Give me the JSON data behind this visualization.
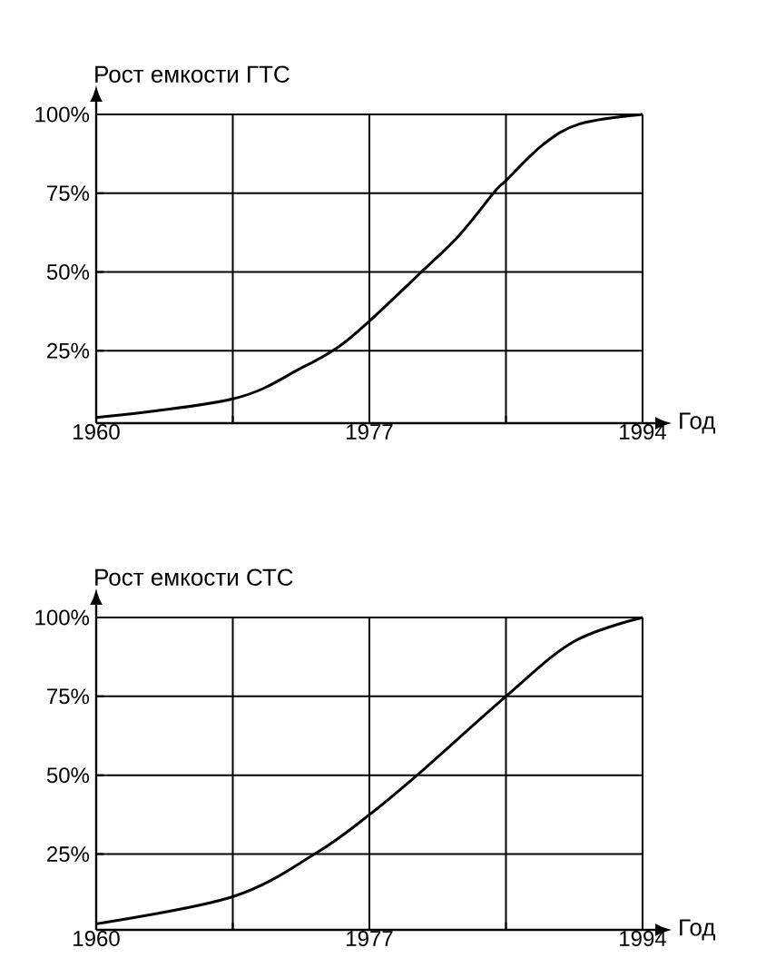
{
  "chart_data": [
    {
      "type": "line",
      "ylabel": "Рост емкости ГТС",
      "xlabel": "Год",
      "x": [
        1960,
        1968.5,
        1972.8,
        1975.1,
        1977,
        1980.3,
        1982.6,
        1984.8,
        1985.5,
        1987.8,
        1990.1,
        1994
      ],
      "series": [
        {
          "color": "#000000",
          "values": [
            3.8,
            9.7,
            19.6,
            26.3,
            34.4,
            50.3,
            61.7,
            75.5,
            79,
            90.4,
            97,
            100
          ]
        }
      ],
      "xlim": [
        1960,
        1994
      ],
      "ylim": [
        2,
        100
      ],
      "xticks": [
        1960,
        1977,
        1994
      ],
      "yticks": [
        {
          "value": 25,
          "label": "25%"
        },
        {
          "value": 50,
          "label": "50%"
        },
        {
          "value": 75,
          "label": "75%"
        },
        {
          "value": 100,
          "label": "100%"
        }
      ],
      "grid": true,
      "line_style": "solid"
    },
    {
      "type": "line",
      "ylabel": "Рост емкости СТС",
      "xlabel": "Год",
      "x": [
        1960,
        1968.5,
        1973.7,
        1977,
        1980.3,
        1985.5,
        1989.7,
        1994
      ],
      "series": [
        {
          "color": "#000000",
          "values": [
            2.9,
            11.5,
            25.4,
            37.5,
            51.5,
            75,
            92.3,
            100
          ]
        }
      ],
      "xlim": [
        1960,
        1994
      ],
      "ylim": [
        1,
        100
      ],
      "xticks": [
        1960,
        1977,
        1994
      ],
      "yticks": [
        {
          "value": 25,
          "label": "25%"
        },
        {
          "value": 50,
          "label": "50%"
        },
        {
          "value": 75,
          "label": "75%"
        },
        {
          "value": 100,
          "label": "100%"
        }
      ],
      "grid": true,
      "line_style": "solid"
    }
  ]
}
